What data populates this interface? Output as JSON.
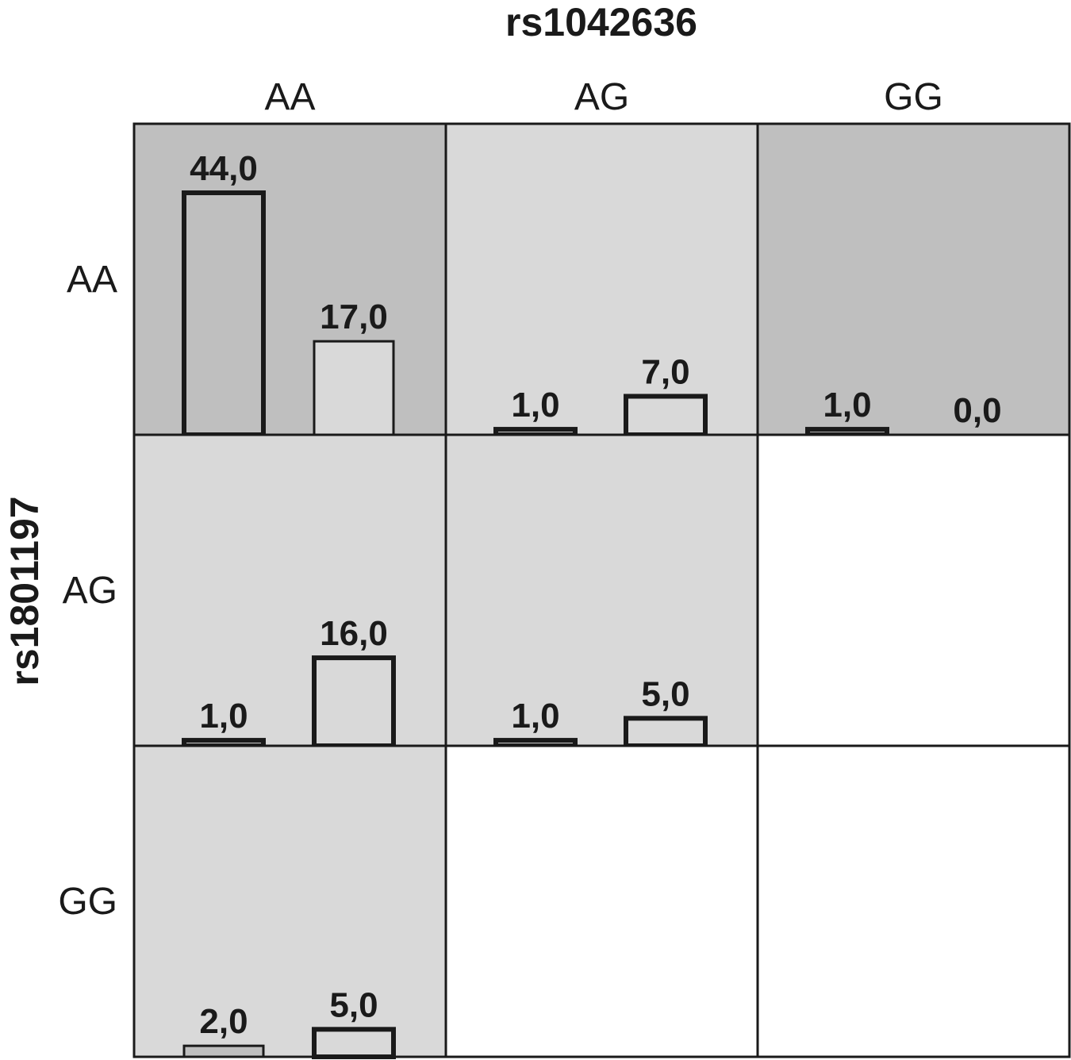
{
  "chart_data": {
    "type": "bar",
    "title": "rs1042636",
    "ylabel": "rs1801197",
    "columns": [
      "AA",
      "AG",
      "GG"
    ],
    "rows": [
      "AA",
      "AG",
      "GG"
    ],
    "ylim": [
      0,
      44
    ],
    "cells": [
      {
        "row": "AA",
        "col": "AA",
        "shade": "#bfbfbf",
        "bars": [
          {
            "value": 44,
            "label": "44,0",
            "fill": "#bfbfbf",
            "stroke_strong": true
          },
          {
            "value": 17,
            "label": "17,0",
            "fill": "#d9d9d9",
            "stroke_strong": false
          }
        ]
      },
      {
        "row": "AA",
        "col": "AG",
        "shade": "#d9d9d9",
        "bars": [
          {
            "value": 1,
            "label": "1,0",
            "fill": "#d9d9d9",
            "stroke_strong": true
          },
          {
            "value": 7,
            "label": "7,0",
            "fill": "#d9d9d9",
            "stroke_strong": true
          }
        ]
      },
      {
        "row": "AA",
        "col": "GG",
        "shade": "#bfbfbf",
        "bars": [
          {
            "value": 1,
            "label": "1,0",
            "fill": "#bfbfbf",
            "stroke_strong": true
          },
          {
            "value": 0,
            "label": "0,0",
            "fill": "#bfbfbf",
            "stroke_strong": true
          }
        ]
      },
      {
        "row": "AG",
        "col": "AA",
        "shade": "#d9d9d9",
        "bars": [
          {
            "value": 1,
            "label": "1,0",
            "fill": "#d9d9d9",
            "stroke_strong": true
          },
          {
            "value": 16,
            "label": "16,0",
            "fill": "#d9d9d9",
            "stroke_strong": true
          }
        ]
      },
      {
        "row": "AG",
        "col": "AG",
        "shade": "#d9d9d9",
        "bars": [
          {
            "value": 1,
            "label": "1,0",
            "fill": "#d9d9d9",
            "stroke_strong": true
          },
          {
            "value": 5,
            "label": "5,0",
            "fill": "#d9d9d9",
            "stroke_strong": true
          }
        ]
      },
      {
        "row": "AG",
        "col": "GG",
        "shade": "#ffffff",
        "bars": []
      },
      {
        "row": "GG",
        "col": "AA",
        "shade": "#d9d9d9",
        "bars": [
          {
            "value": 2,
            "label": "2,0",
            "fill": "#bfbfbf",
            "stroke_strong": false
          },
          {
            "value": 5,
            "label": "5,0",
            "fill": "#d9d9d9",
            "stroke_strong": true
          }
        ]
      },
      {
        "row": "GG",
        "col": "AG",
        "shade": "#ffffff",
        "bars": []
      },
      {
        "row": "GG",
        "col": "GG",
        "shade": "#ffffff",
        "bars": []
      }
    ],
    "colors": {
      "dark_shade": "#bfbfbf",
      "light_shade": "#d9d9d9",
      "empty": "#ffffff",
      "line": "#1a1a1a"
    }
  }
}
